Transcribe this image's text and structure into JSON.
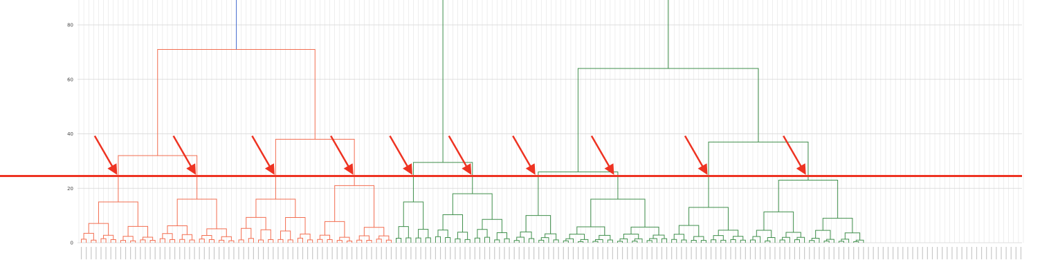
{
  "chart_data": {
    "type": "dendrogram",
    "title": "",
    "xlabel": "",
    "ylabel": "",
    "ylim": [
      0,
      90
    ],
    "yticks": [
      0,
      20,
      40,
      60,
      80
    ],
    "grid": true,
    "leaf_count": 192,
    "threshold": 24.5,
    "threshold_color": "#ee3322",
    "root_height": 95,
    "root_link_color": "#4a6fd0",
    "clusters": [
      {
        "color": "#f26c4f",
        "join_height": 71,
        "members": [
          {
            "join_height": 32,
            "members": [
              {
                "join_height": 15,
                "leaves": 16
              },
              {
                "join_height": 16,
                "leaves": 16
              }
            ]
          },
          {
            "join_height": 38,
            "members": [
              {
                "join_height": 16,
                "leaves": 16
              },
              {
                "join_height": 21,
                "leaves": 16
              }
            ]
          }
        ]
      },
      {
        "color": "#3e8e4a",
        "join_height": 95,
        "members": [
          {
            "join_height": 29.5,
            "members": [
              {
                "join_height": 15,
                "leaves": 8
              },
              {
                "join_height": 18,
                "leaves": 16
              }
            ]
          },
          {
            "join_height": 64,
            "members": [
              {
                "join_height": 26,
                "members": [
                  {
                    "join_height": 10,
                    "leaves": 10
                  },
                  {
                    "join_height": 16,
                    "leaves": 22
                  }
                ]
              },
              {
                "join_height": 37,
                "members": [
                  {
                    "join_height": 13,
                    "leaves": 16
                  },
                  {
                    "join_height": 23,
                    "leaves": 24
                  }
                ]
              }
            ]
          }
        ]
      }
    ],
    "arrow_color": "#ee3322",
    "arrows": [
      {
        "points_to_cluster": 1
      },
      {
        "points_to_cluster": 2
      },
      {
        "points_to_cluster": 3
      },
      {
        "points_to_cluster": 4
      },
      {
        "points_to_cluster": 5
      },
      {
        "points_to_cluster": 6
      },
      {
        "points_to_cluster": 7
      },
      {
        "points_to_cluster": 8
      },
      {
        "points_to_cluster": 9
      },
      {
        "points_to_cluster": 10
      }
    ]
  }
}
